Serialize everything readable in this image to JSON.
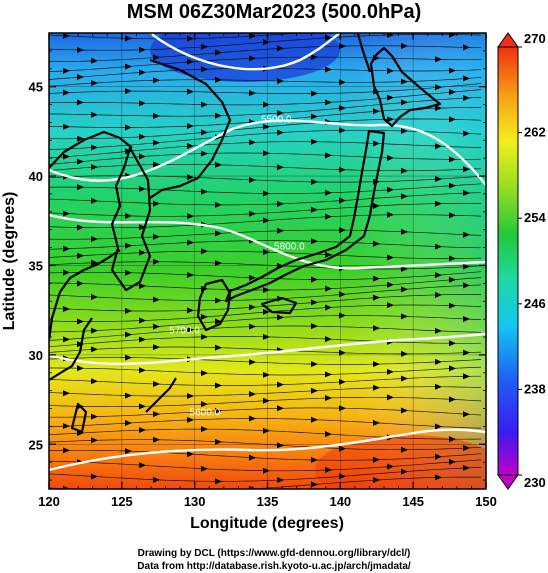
{
  "title": "MSM 06Z30Mar2023 (500.0hPa)",
  "x_axis": {
    "label": "Longitude (degrees)",
    "ticks": [
      120,
      125,
      130,
      135,
      140,
      145,
      150
    ],
    "range": [
      120,
      150
    ]
  },
  "y_axis": {
    "label": "Latitude  (degrees)",
    "ticks": [
      25,
      30,
      35,
      40,
      45
    ],
    "range": [
      22.5,
      48
    ]
  },
  "colorbar": {
    "ticks": [
      230,
      238,
      246,
      254,
      262,
      270
    ],
    "range": [
      230,
      270
    ]
  },
  "contours": [
    {
      "label": "5600.0",
      "lon": 130.7,
      "lat": 26.6
    },
    {
      "label": "5700.0",
      "lon": 129.3,
      "lat": 31.2
    },
    {
      "label": "5800.0",
      "lon": 136.5,
      "lat": 35.9
    },
    {
      "label": "5500.0",
      "lon": 135.6,
      "lat": 43.0
    }
  ],
  "credits": [
    "Drawing by DCL (https://www.gfd-dennou.org/library/dcl/)",
    "Data from http://database.rish.kyoto-u.ac.jp/arch/jmadata/"
  ]
}
